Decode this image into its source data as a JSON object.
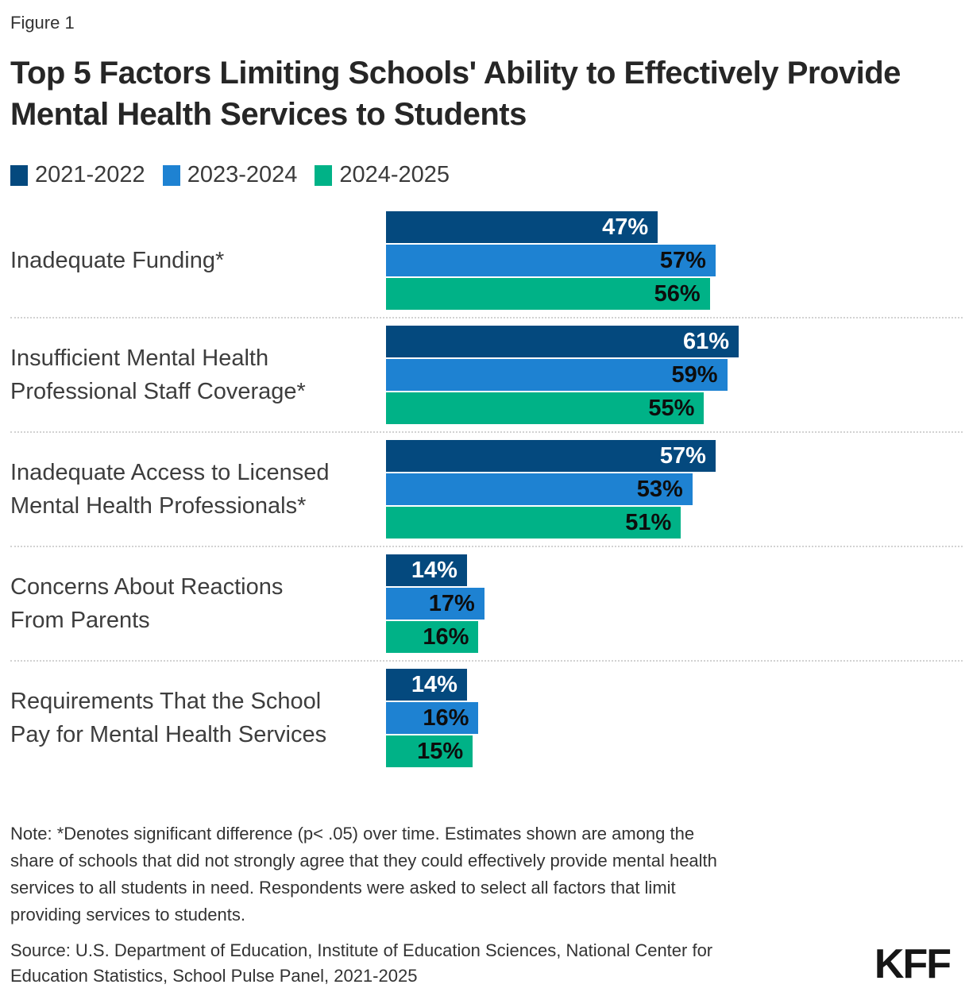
{
  "figure_label": "Figure 1",
  "title_lines": [
    "Top 5 Factors Limiting Schools' Ability to Effectively Provide",
    "Mental Health Services to Students"
  ],
  "chart_data": {
    "type": "bar",
    "orientation": "horizontal",
    "value_suffix": "%",
    "xlim": [
      0,
      100
    ],
    "grid": false,
    "legend_position": "top",
    "series": [
      {
        "name": "2021-2022",
        "color": "#04497E"
      },
      {
        "name": "2023-2024",
        "color": "#1E82D2"
      },
      {
        "name": "2024-2025",
        "color": "#00B287"
      }
    ],
    "categories": [
      {
        "label_lines": [
          "Inadequate Funding*"
        ],
        "values": [
          47,
          57,
          56
        ]
      },
      {
        "label_lines": [
          "Insufficient Mental Health",
          "Professional Staff Coverage*"
        ],
        "values": [
          61,
          59,
          55
        ]
      },
      {
        "label_lines": [
          "Inadequate Access to Licensed",
          "Mental Health Professionals*"
        ],
        "values": [
          57,
          53,
          51
        ]
      },
      {
        "label_lines": [
          "Concerns About Reactions",
          "From Parents"
        ],
        "values": [
          14,
          17,
          16
        ]
      },
      {
        "label_lines": [
          "Requirements That the School",
          "Pay for Mental Health Services"
        ],
        "values": [
          14,
          16,
          15
        ]
      }
    ]
  },
  "footer": {
    "note_lines": [
      "Note: *Denotes significant difference (p< .05) over time. Estimates shown are among the",
      "share of schools that did not strongly agree that they could effectively provide mental health",
      "services to all students in need. Respondents were asked to select all factors that limit",
      "providing services to students."
    ],
    "source_lines": [
      "Source: U.S. Department of Education, Institute of Education Sciences, National Center for",
      "Education Statistics, School Pulse Panel, 2021-2025"
    ],
    "logo_text": "KFF"
  }
}
